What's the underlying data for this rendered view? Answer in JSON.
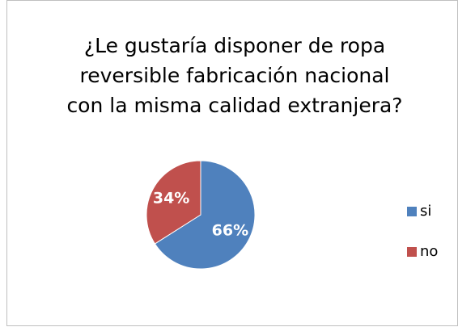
{
  "chart_data": {
    "type": "pie",
    "title": "¿Le gustaría  disponer de ropa\nreversible fabricación nacional\ncon la misma calidad extranjera?",
    "categories": [
      "si",
      "no"
    ],
    "values": [
      66,
      34
    ],
    "value_labels": [
      "66%",
      "34%"
    ],
    "colors": [
      "#4f81bd",
      "#c0504d"
    ],
    "legend": "right"
  }
}
